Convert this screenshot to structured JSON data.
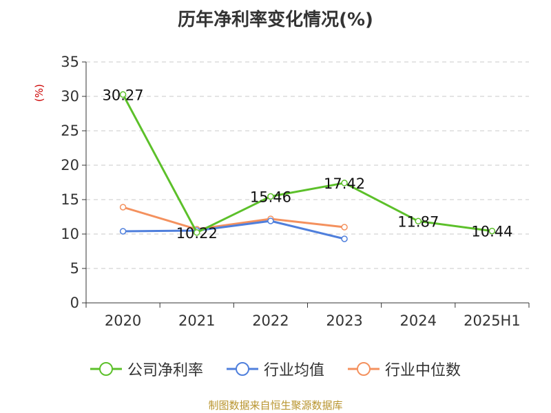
{
  "chart_data": {
    "type": "line",
    "title": "历年净利率变化情况(%)",
    "ylabel": "(%)",
    "xlabel": "",
    "categories": [
      "2020",
      "2021",
      "2022",
      "2023",
      "2024",
      "2025H1"
    ],
    "ylim": [
      0,
      35
    ],
    "yticks": [
      0,
      5,
      10,
      15,
      20,
      25,
      30,
      35
    ],
    "grid": true,
    "legend_position": "bottom",
    "series": [
      {
        "name": "公司净利率",
        "color": "#5cc02a",
        "values": [
          30.27,
          10.22,
          15.46,
          17.42,
          11.87,
          10.44
        ],
        "labels": [
          "30.27",
          "10.22",
          "15.46",
          "17.42",
          "11.87",
          "10.44"
        ]
      },
      {
        "name": "行业均值",
        "color": "#4f7fdc",
        "values": [
          10.4,
          10.5,
          11.9,
          9.3,
          null,
          null
        ]
      },
      {
        "name": "行业中位数",
        "color": "#f4915e",
        "values": [
          13.9,
          10.7,
          12.2,
          11.0,
          null,
          null
        ]
      }
    ]
  },
  "source_note": "制图数据来自恒生聚源数据库"
}
